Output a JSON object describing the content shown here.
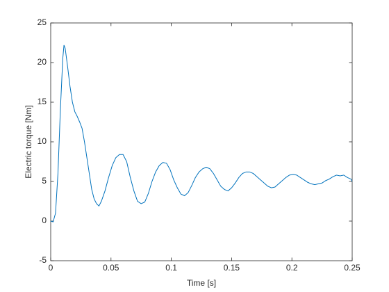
{
  "chart_data": {
    "type": "line",
    "xlabel": "Time [s]",
    "ylabel": "Electric torque [Nm]",
    "x": [
      0,
      0.002,
      0.004,
      0.006,
      0.008,
      0.01,
      0.011,
      0.012,
      0.014,
      0.016,
      0.018,
      0.02,
      0.022,
      0.024,
      0.026,
      0.028,
      0.03,
      0.032,
      0.034,
      0.036,
      0.038,
      0.04,
      0.042,
      0.045,
      0.048,
      0.051,
      0.054,
      0.057,
      0.06,
      0.063,
      0.066,
      0.069,
      0.072,
      0.075,
      0.078,
      0.081,
      0.084,
      0.087,
      0.09,
      0.093,
      0.096,
      0.099,
      0.102,
      0.105,
      0.108,
      0.111,
      0.114,
      0.117,
      0.12,
      0.123,
      0.126,
      0.129,
      0.132,
      0.135,
      0.138,
      0.141,
      0.144,
      0.147,
      0.15,
      0.153,
      0.156,
      0.159,
      0.162,
      0.165,
      0.168,
      0.171,
      0.174,
      0.177,
      0.18,
      0.183,
      0.186,
      0.189,
      0.192,
      0.195,
      0.198,
      0.201,
      0.204,
      0.207,
      0.21,
      0.213,
      0.216,
      0.219,
      0.222,
      0.225,
      0.228,
      0.231,
      0.234,
      0.237,
      0.24,
      0.243,
      0.246,
      0.249,
      0.25
    ],
    "series": [
      {
        "color": "#0072bd",
        "values": [
          0,
          -0.1,
          1,
          6,
          14,
          20.5,
          22.2,
          21.8,
          19.5,
          17,
          15,
          13.8,
          13.2,
          12.5,
          11.7,
          10,
          8,
          6,
          4,
          2.8,
          2.2,
          1.9,
          2.5,
          3.8,
          5.5,
          7,
          8,
          8.4,
          8.4,
          7.5,
          5.5,
          3.8,
          2.5,
          2.2,
          2.4,
          3.5,
          5,
          6.2,
          7,
          7.4,
          7.3,
          6.5,
          5.2,
          4.2,
          3.4,
          3.2,
          3.6,
          4.5,
          5.5,
          6.2,
          6.6,
          6.8,
          6.6,
          6,
          5.2,
          4.4,
          4,
          3.8,
          4.2,
          4.8,
          5.5,
          6,
          6.2,
          6.2,
          6,
          5.6,
          5.2,
          4.8,
          4.4,
          4.2,
          4.3,
          4.7,
          5.1,
          5.5,
          5.8,
          5.9,
          5.8,
          5.5,
          5.2,
          4.9,
          4.7,
          4.6,
          4.7,
          4.8,
          5.1,
          5.3,
          5.6,
          5.8,
          5.7,
          5.8,
          5.5,
          5.3,
          5.0
        ]
      }
    ],
    "xlim": [
      0,
      0.25
    ],
    "xticks": [
      0,
      0.05,
      0.1,
      0.15,
      0.2,
      0.25
    ],
    "ylim": [
      -5,
      25
    ],
    "yticks": [
      -5,
      0,
      5,
      10,
      15,
      20,
      25
    ],
    "grid": false
  }
}
